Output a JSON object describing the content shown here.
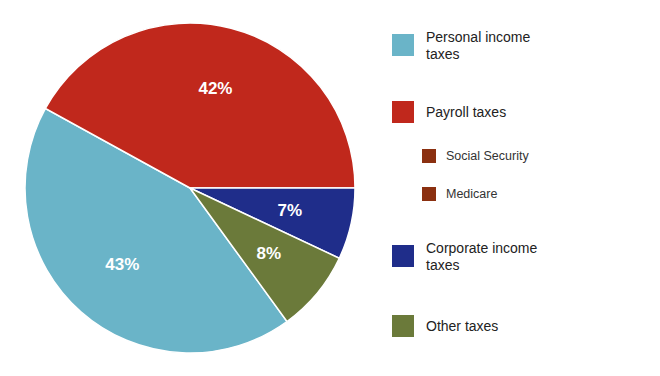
{
  "chart_data": {
    "type": "pie",
    "categories": [
      "Personal income\ntaxes",
      "Payroll taxes",
      "Corporate income\ntaxes",
      "Other taxes"
    ],
    "values": [
      43,
      42,
      7,
      8
    ],
    "value_labels": [
      "43%",
      "42%",
      "7%",
      "8%"
    ],
    "colors": [
      "#6ab4c8",
      "#c0281c",
      "#1f2d8a",
      "#6b7a3a"
    ],
    "data_labels": true,
    "legend": "right",
    "annotations": [
      {
        "text": "Social Security",
        "color": "#8b3010"
      },
      {
        "text": "Medicare",
        "color": "#8b3010"
      }
    ]
  }
}
